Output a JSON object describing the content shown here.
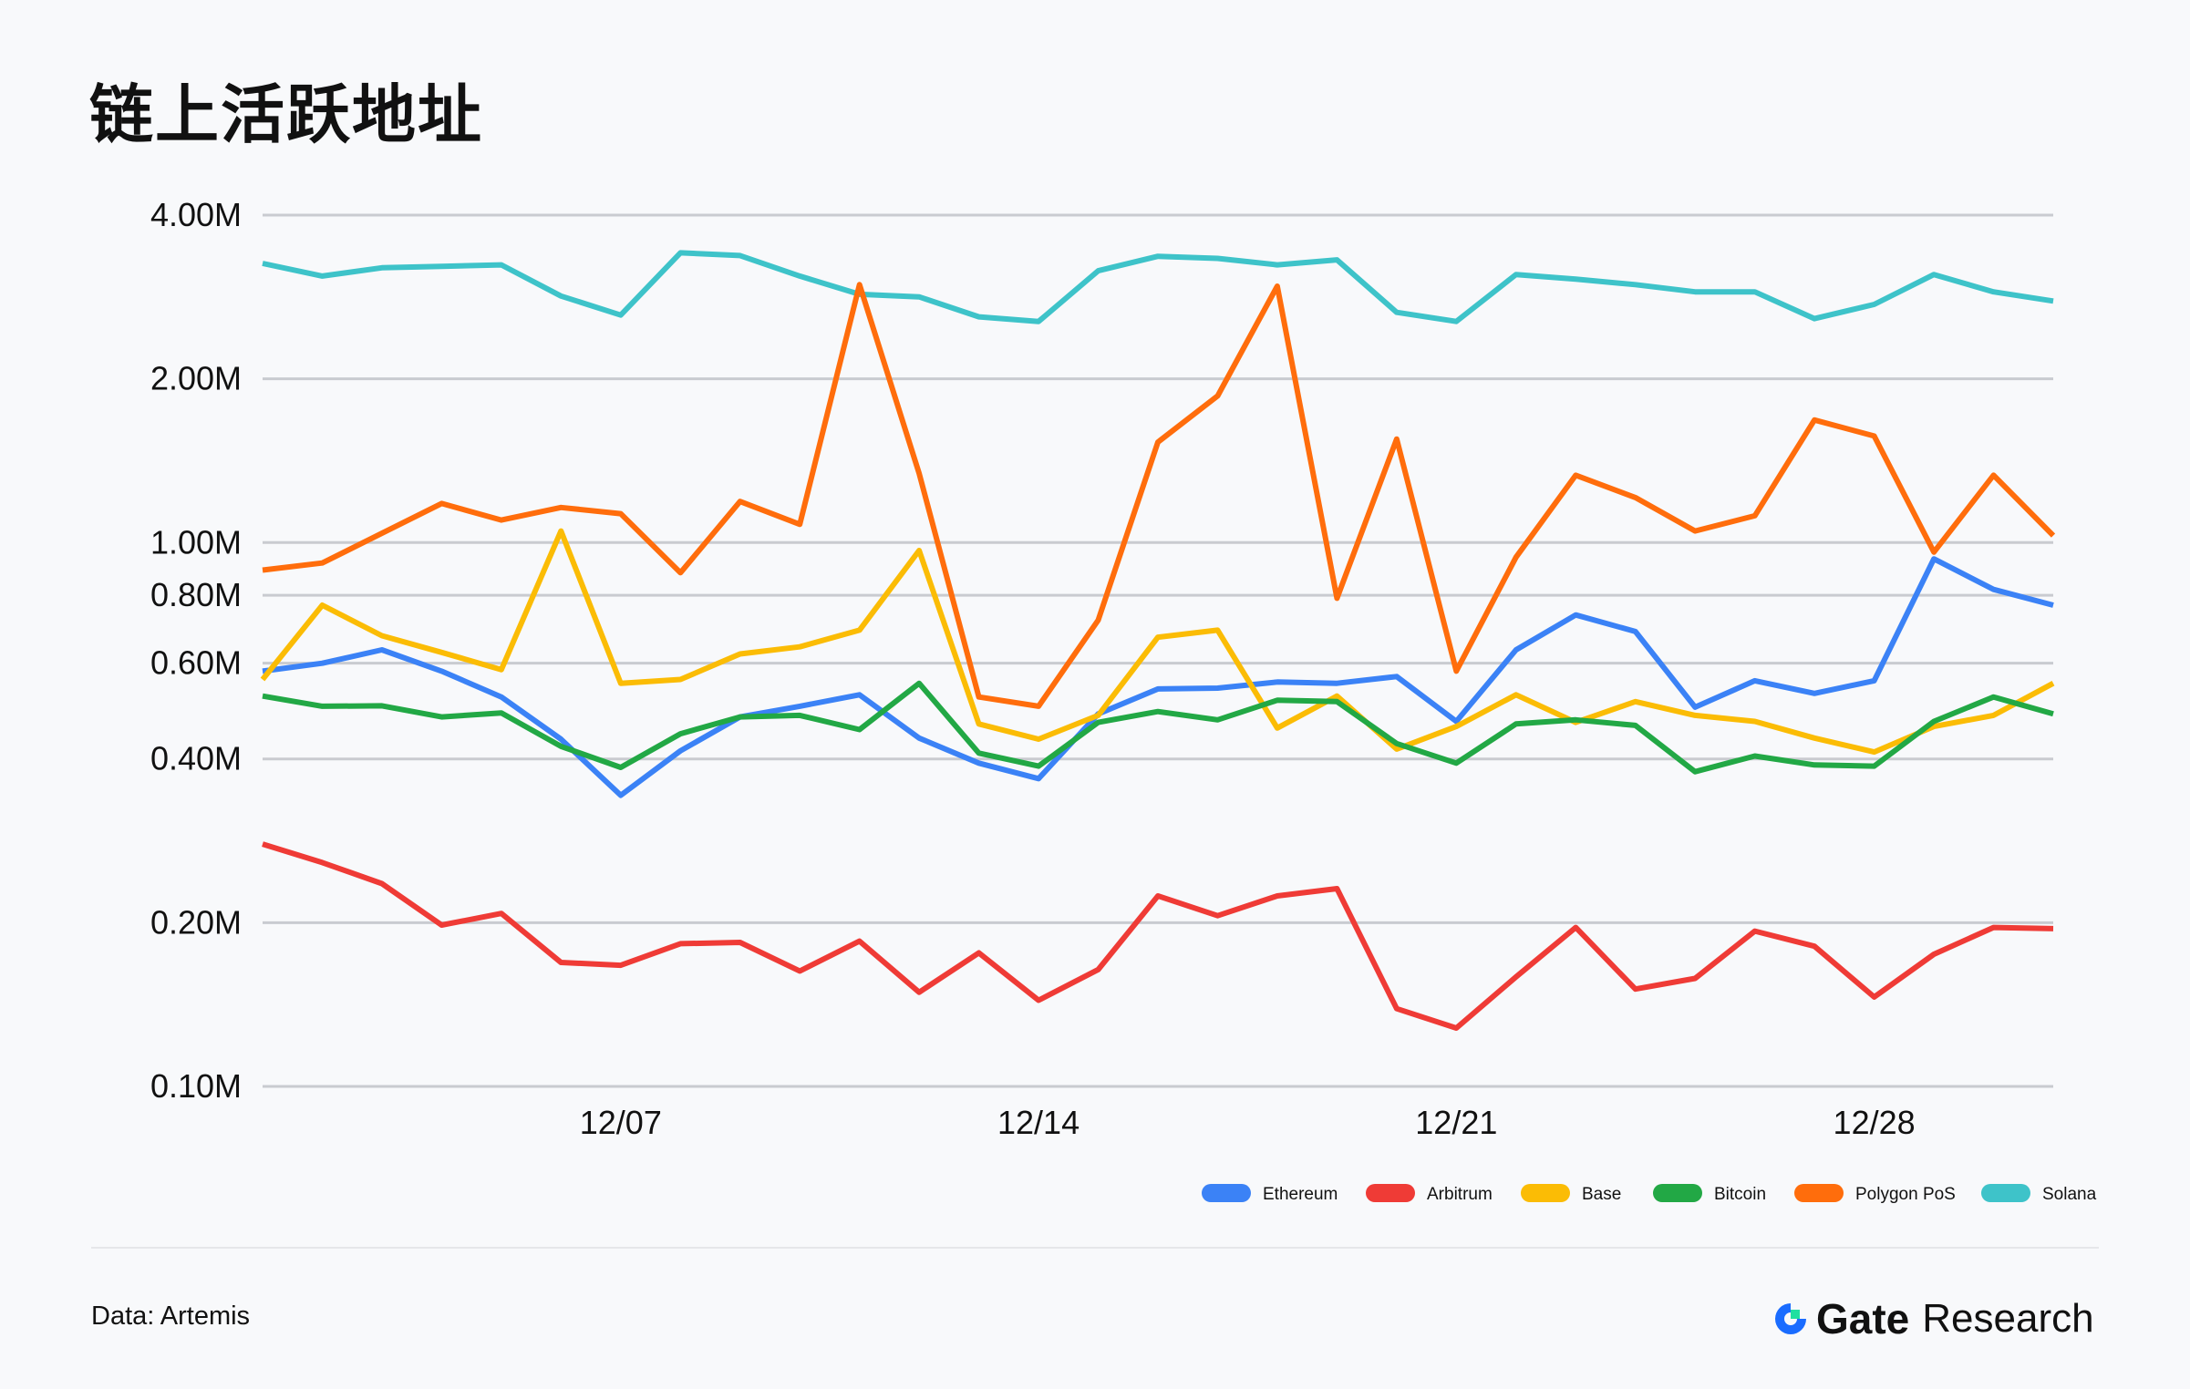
{
  "title": "链上活跃地址",
  "source": "Data: Artemis",
  "logo": {
    "brand": "Gate",
    "suffix": "Research",
    "colors": {
      "ring": "#1a6cff",
      "square": "#1fe0a0"
    }
  },
  "chart_data": {
    "type": "line",
    "title": "",
    "xlabel": "",
    "ylabel": "",
    "yscale": "log",
    "ylim": [
      0.1,
      4.0
    ],
    "yticks": [
      4.0,
      2.0,
      1.0,
      0.8,
      0.6,
      0.4,
      0.2,
      0.1
    ],
    "ytick_labels": [
      "4.00M",
      "2.00M",
      "1.00M",
      "0.80M",
      "0.60M",
      "0.40M",
      "0.20M",
      "0.10M"
    ],
    "x": [
      "12/01",
      "12/02",
      "12/03",
      "12/04",
      "12/05",
      "12/06",
      "12/07",
      "12/08",
      "12/09",
      "12/10",
      "12/11",
      "12/12",
      "12/13",
      "12/14",
      "12/15",
      "12/16",
      "12/17",
      "12/18",
      "12/19",
      "12/20",
      "12/21",
      "12/22",
      "12/23",
      "12/24",
      "12/25",
      "12/26",
      "12/27",
      "12/28",
      "12/29",
      "12/30",
      "12/31"
    ],
    "xtick_labels": [
      "12/07",
      "12/14",
      "12/21",
      "12/28"
    ],
    "grid": true,
    "legend_position": "bottom-right",
    "series": [
      {
        "name": "Ethereum",
        "color": "#3b82f6",
        "values": [
          0.58,
          0.6,
          0.635,
          0.58,
          0.52,
          0.435,
          0.343,
          0.414,
          0.478,
          0.5,
          0.525,
          0.437,
          0.393,
          0.368,
          0.484,
          0.538,
          0.54,
          0.554,
          0.551,
          0.567,
          0.469,
          0.635,
          0.736,
          0.686,
          0.498,
          0.557,
          0.528,
          0.557,
          0.933,
          0.82,
          0.767
        ]
      },
      {
        "name": "Arbitrum",
        "color": "#ef3b36",
        "values": [
          0.279,
          0.258,
          0.236,
          0.198,
          0.208,
          0.169,
          0.167,
          0.183,
          0.184,
          0.163,
          0.185,
          0.149,
          0.176,
          0.144,
          0.164,
          0.224,
          0.206,
          0.224,
          0.231,
          0.139,
          0.128,
          0.159,
          0.196,
          0.151,
          0.158,
          0.193,
          0.181,
          0.146,
          0.175,
          0.196,
          0.195
        ]
      },
      {
        "name": "Base",
        "color": "#fbbc05",
        "values": [
          0.56,
          0.767,
          0.674,
          0.628,
          0.584,
          1.05,
          0.551,
          0.56,
          0.624,
          0.643,
          0.69,
          0.967,
          0.464,
          0.435,
          0.481,
          0.67,
          0.69,
          0.456,
          0.522,
          0.417,
          0.459,
          0.525,
          0.467,
          0.51,
          0.481,
          0.469,
          0.437,
          0.412,
          0.459,
          0.481,
          0.551
        ]
      },
      {
        "name": "Bitcoin",
        "color": "#22a845",
        "values": [
          0.522,
          0.5,
          0.501,
          0.478,
          0.486,
          0.422,
          0.386,
          0.445,
          0.478,
          0.481,
          0.453,
          0.551,
          0.41,
          0.388,
          0.467,
          0.489,
          0.472,
          0.513,
          0.51,
          0.427,
          0.393,
          0.464,
          0.472,
          0.461,
          0.379,
          0.405,
          0.39,
          0.388,
          0.469,
          0.52,
          0.484
        ]
      },
      {
        "name": "Polygon PoS",
        "color": "#ff6d0c",
        "values": [
          0.89,
          0.917,
          1.04,
          1.18,
          1.1,
          1.16,
          1.13,
          0.88,
          1.19,
          1.08,
          2.98,
          1.34,
          0.52,
          0.5,
          0.72,
          1.53,
          1.86,
          2.96,
          0.79,
          1.55,
          0.58,
          0.94,
          1.33,
          1.21,
          1.05,
          1.12,
          1.68,
          1.57,
          0.96,
          1.33,
          1.03
        ]
      },
      {
        "name": "Solana",
        "color": "#3ec3c9",
        "values": [
          3.26,
          3.09,
          3.2,
          3.22,
          3.24,
          2.84,
          2.62,
          3.41,
          3.37,
          3.09,
          2.86,
          2.83,
          2.6,
          2.55,
          3.16,
          3.36,
          3.33,
          3.24,
          3.31,
          2.65,
          2.55,
          3.11,
          3.05,
          2.98,
          2.89,
          2.89,
          2.58,
          2.74,
          3.11,
          2.89,
          2.78
        ]
      }
    ]
  }
}
